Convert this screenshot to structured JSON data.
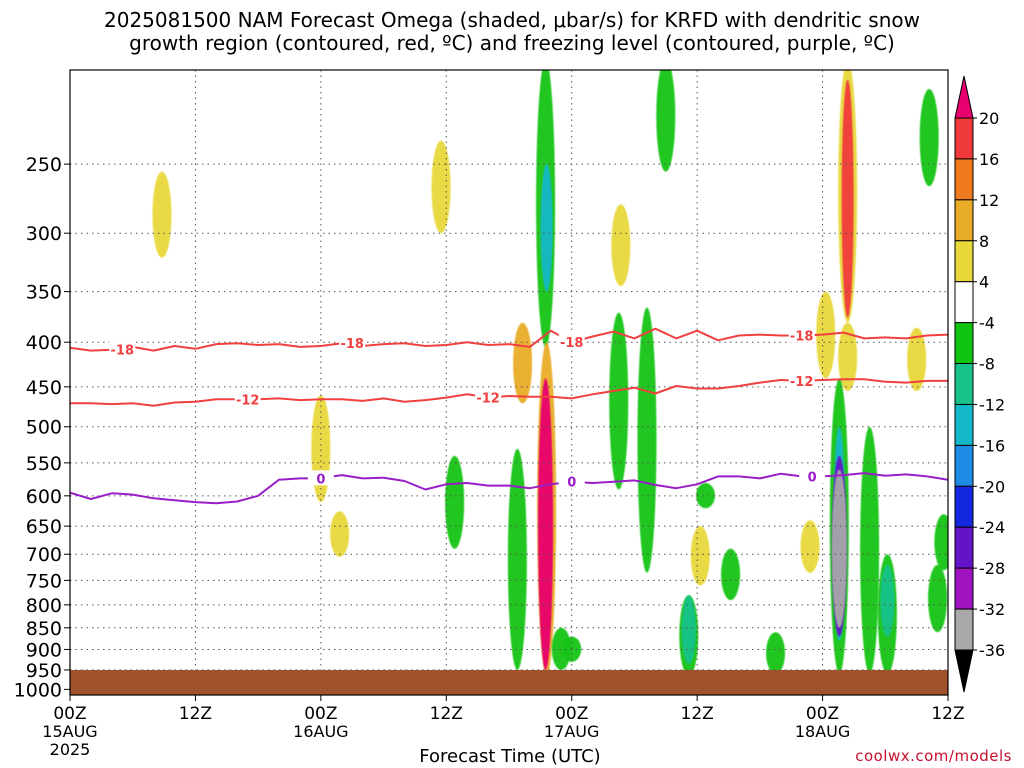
{
  "title_line1": "2025081500 NAM Forecast Omega (shaded, μbar/s) for KRFD with dendritic snow",
  "title_line2": "growth region (contoured, red, ºC) and freezing level (contoured, purple, ºC)",
  "credit": "coolwx.com/models",
  "chart_data": {
    "type": "heatmap",
    "xlabel": "Forecast Time (UTC)",
    "ylabel": "",
    "y_scale": "log-pressure (hPa), inverted",
    "ylim": [
      1015,
      195
    ],
    "xlim": [
      0,
      84
    ],
    "x_ticks": [
      {
        "t": 0,
        "label": "00Z",
        "sub": "15AUG",
        "sub2": "2025"
      },
      {
        "t": 12,
        "label": "12Z"
      },
      {
        "t": 24,
        "label": "00Z",
        "sub": "16AUG"
      },
      {
        "t": 36,
        "label": "12Z"
      },
      {
        "t": 48,
        "label": "00Z",
        "sub": "17AUG"
      },
      {
        "t": 60,
        "label": "12Z"
      },
      {
        "t": 72,
        "label": "00Z",
        "sub": "18AUG"
      },
      {
        "t": 84,
        "label": "12Z"
      }
    ],
    "y_ticks": [
      250,
      300,
      350,
      400,
      450,
      500,
      550,
      600,
      650,
      700,
      750,
      800,
      850,
      900,
      950,
      1000
    ],
    "grid": true,
    "colorbar": {
      "labels": [
        "20",
        "16",
        "12",
        "8",
        "4",
        "-4",
        "-8",
        "-12",
        "-16",
        "-20",
        "-24",
        "-28",
        "-32",
        "-36"
      ],
      "colors": [
        "#e8006e",
        "#f03a3a",
        "#f07a1e",
        "#e8ac28",
        "#e8d83a",
        "#ffffff",
        "#12c412",
        "#18c28a",
        "#12b8c8",
        "#1e8ce6",
        "#1428e0",
        "#6414c8",
        "#a014c0",
        "#a8a8a8",
        "#000000"
      ]
    },
    "omega_fields": [
      {
        "t": 8.8,
        "p": [
          255,
          270,
          320
        ],
        "value": 4
      },
      {
        "t": 24.0,
        "p": [
          460,
          520,
          610
        ],
        "value": 4
      },
      {
        "t": 25.8,
        "p": [
          625,
          640,
          705
        ],
        "value": 4
      },
      {
        "t": 45.5,
        "p": [
          190,
          290,
          405
        ],
        "value": -8
      },
      {
        "t": 45.6,
        "p": [
          250,
          300,
          350
        ],
        "value": -16
      },
      {
        "t": 43.3,
        "p": [
          380,
          430,
          470
        ],
        "value": 8
      },
      {
        "t": 45.6,
        "p": [
          400,
          660,
          965
        ],
        "value": 8
      },
      {
        "t": 45.5,
        "p": [
          440,
          660,
          950
        ],
        "value": 20
      },
      {
        "t": 42.8,
        "p": [
          530,
          700,
          950
        ],
        "value": -8
      },
      {
        "t": 47.0,
        "p": [
          850,
          900,
          950
        ],
        "value": -8
      },
      {
        "t": 48.0,
        "p": [
          870,
          905,
          930
        ],
        "value": -8
      },
      {
        "t": 52.7,
        "p": [
          278,
          300,
          345
        ],
        "value": 4
      },
      {
        "t": 57.0,
        "p": [
          190,
          225,
          255
        ],
        "value": -8
      },
      {
        "t": 60.3,
        "p": [
          650,
          680,
          760
        ],
        "value": 4
      },
      {
        "t": 55.2,
        "p": [
          365,
          480,
          735
        ],
        "value": -8
      },
      {
        "t": 59.2,
        "p": [
          780,
          860,
          965
        ],
        "value": -8
      },
      {
        "t": 59.2,
        "p": [
          780,
          855,
          935
        ],
        "value": -12
      },
      {
        "t": 63.2,
        "p": [
          690,
          760,
          790
        ],
        "value": -8
      },
      {
        "t": 60.8,
        "p": [
          580,
          600,
          620
        ],
        "value": -8
      },
      {
        "t": 70.8,
        "p": [
          640,
          700,
          735
        ],
        "value": 4
      },
      {
        "t": 67.5,
        "p": [
          860,
          920,
          960
        ],
        "value": -8
      },
      {
        "t": 74.4,
        "p": [
          190,
          290,
          380
        ],
        "value": 4
      },
      {
        "t": 74.4,
        "p": [
          200,
          280,
          375
        ],
        "value": 16
      },
      {
        "t": 74.4,
        "p": [
          380,
          420,
          455
        ],
        "value": 4
      },
      {
        "t": 73.6,
        "p": [
          440,
          700,
          960
        ],
        "value": -8
      },
      {
        "t": 73.6,
        "p": [
          500,
          700,
          880
        ],
        "value": -16
      },
      {
        "t": 73.6,
        "p": [
          540,
          700,
          870
        ],
        "value": -28
      },
      {
        "t": 73.6,
        "p": [
          560,
          700,
          850
        ],
        "value": -36
      },
      {
        "t": 76.5,
        "p": [
          500,
          650,
          960
        ],
        "value": -8
      },
      {
        "t": 78.2,
        "p": [
          700,
          800,
          960
        ],
        "value": -8
      },
      {
        "t": 78.2,
        "p": [
          720,
          780,
          870
        ],
        "value": -12
      },
      {
        "t": 82.2,
        "p": [
          205,
          225,
          265
        ],
        "value": -8
      },
      {
        "t": 81.0,
        "p": [
          385,
          420,
          455
        ],
        "value": 4
      },
      {
        "t": 83.6,
        "p": [
          630,
          680,
          730
        ],
        "value": -8
      },
      {
        "t": 83.0,
        "p": [
          720,
          780,
          860
        ],
        "value": -8
      },
      {
        "t": 35.5,
        "p": [
          235,
          260,
          300
        ],
        "value": 4
      },
      {
        "t": 36.8,
        "p": [
          540,
          600,
          690
        ],
        "value": -8
      },
      {
        "t": 52.5,
        "p": [
          370,
          470,
          590
        ],
        "value": -8
      },
      {
        "t": 72.3,
        "p": [
          350,
          400,
          440
        ],
        "value": 4
      }
    ],
    "dgz_minus18": {
      "label": "-18",
      "x": [
        0,
        2,
        4,
        6,
        8,
        10,
        12,
        14,
        16,
        18,
        20,
        22,
        24,
        26,
        28,
        30,
        32,
        34,
        36,
        38,
        40,
        42,
        44,
        46,
        48,
        50,
        52,
        54,
        56,
        58,
        60,
        62,
        64,
        66,
        68,
        70,
        72,
        74,
        76,
        78,
        80,
        82,
        84
      ],
      "y": [
        406,
        409,
        408,
        405,
        409,
        404,
        407,
        402,
        401,
        403,
        402,
        405,
        404,
        401,
        404,
        402,
        401,
        404,
        403,
        400,
        403,
        402,
        405,
        388,
        400,
        394,
        389,
        396,
        386,
        396,
        388,
        398,
        393,
        392,
        393,
        393,
        392,
        390,
        396,
        395,
        396,
        393,
        392
      ],
      "label_t": [
        5,
        27,
        48,
        70
      ]
    },
    "dgz_minus12": {
      "label": "-12",
      "x": [
        0,
        2,
        4,
        6,
        8,
        10,
        12,
        14,
        16,
        18,
        20,
        22,
        24,
        26,
        28,
        30,
        32,
        34,
        36,
        38,
        40,
        42,
        44,
        46,
        48,
        50,
        52,
        54,
        56,
        58,
        60,
        62,
        64,
        66,
        68,
        70,
        72,
        74,
        76,
        78,
        80,
        82,
        84
      ],
      "y": [
        470,
        470,
        471,
        470,
        473,
        469,
        468,
        465,
        465,
        465,
        464,
        466,
        465,
        465,
        467,
        464,
        468,
        466,
        463,
        459,
        463,
        461,
        462,
        462,
        464,
        459,
        455,
        451,
        458,
        449,
        452,
        452,
        449,
        445,
        442,
        443,
        442,
        441,
        441,
        444,
        445,
        443,
        443
      ],
      "label_t": [
        17,
        40,
        70
      ]
    },
    "freezing_level_0C": {
      "label": "0",
      "x": [
        0,
        2,
        4,
        6,
        8,
        10,
        12,
        14,
        16,
        18,
        20,
        22,
        24,
        26,
        28,
        30,
        32,
        34,
        36,
        38,
        40,
        42,
        44,
        46,
        48,
        50,
        52,
        54,
        56,
        58,
        60,
        62,
        64,
        66,
        68,
        70,
        72,
        74,
        76,
        78,
        80,
        82,
        84
      ],
      "y": [
        595,
        605,
        596,
        598,
        604,
        607,
        610,
        612,
        609,
        600,
        575,
        573,
        573,
        568,
        573,
        572,
        577,
        590,
        582,
        580,
        584,
        584,
        588,
        582,
        578,
        580,
        578,
        576,
        583,
        588,
        582,
        570,
        570,
        573,
        566,
        570,
        570,
        568,
        565,
        569,
        567,
        570,
        575
      ],
      "label_t": [
        24,
        48,
        71
      ]
    }
  }
}
